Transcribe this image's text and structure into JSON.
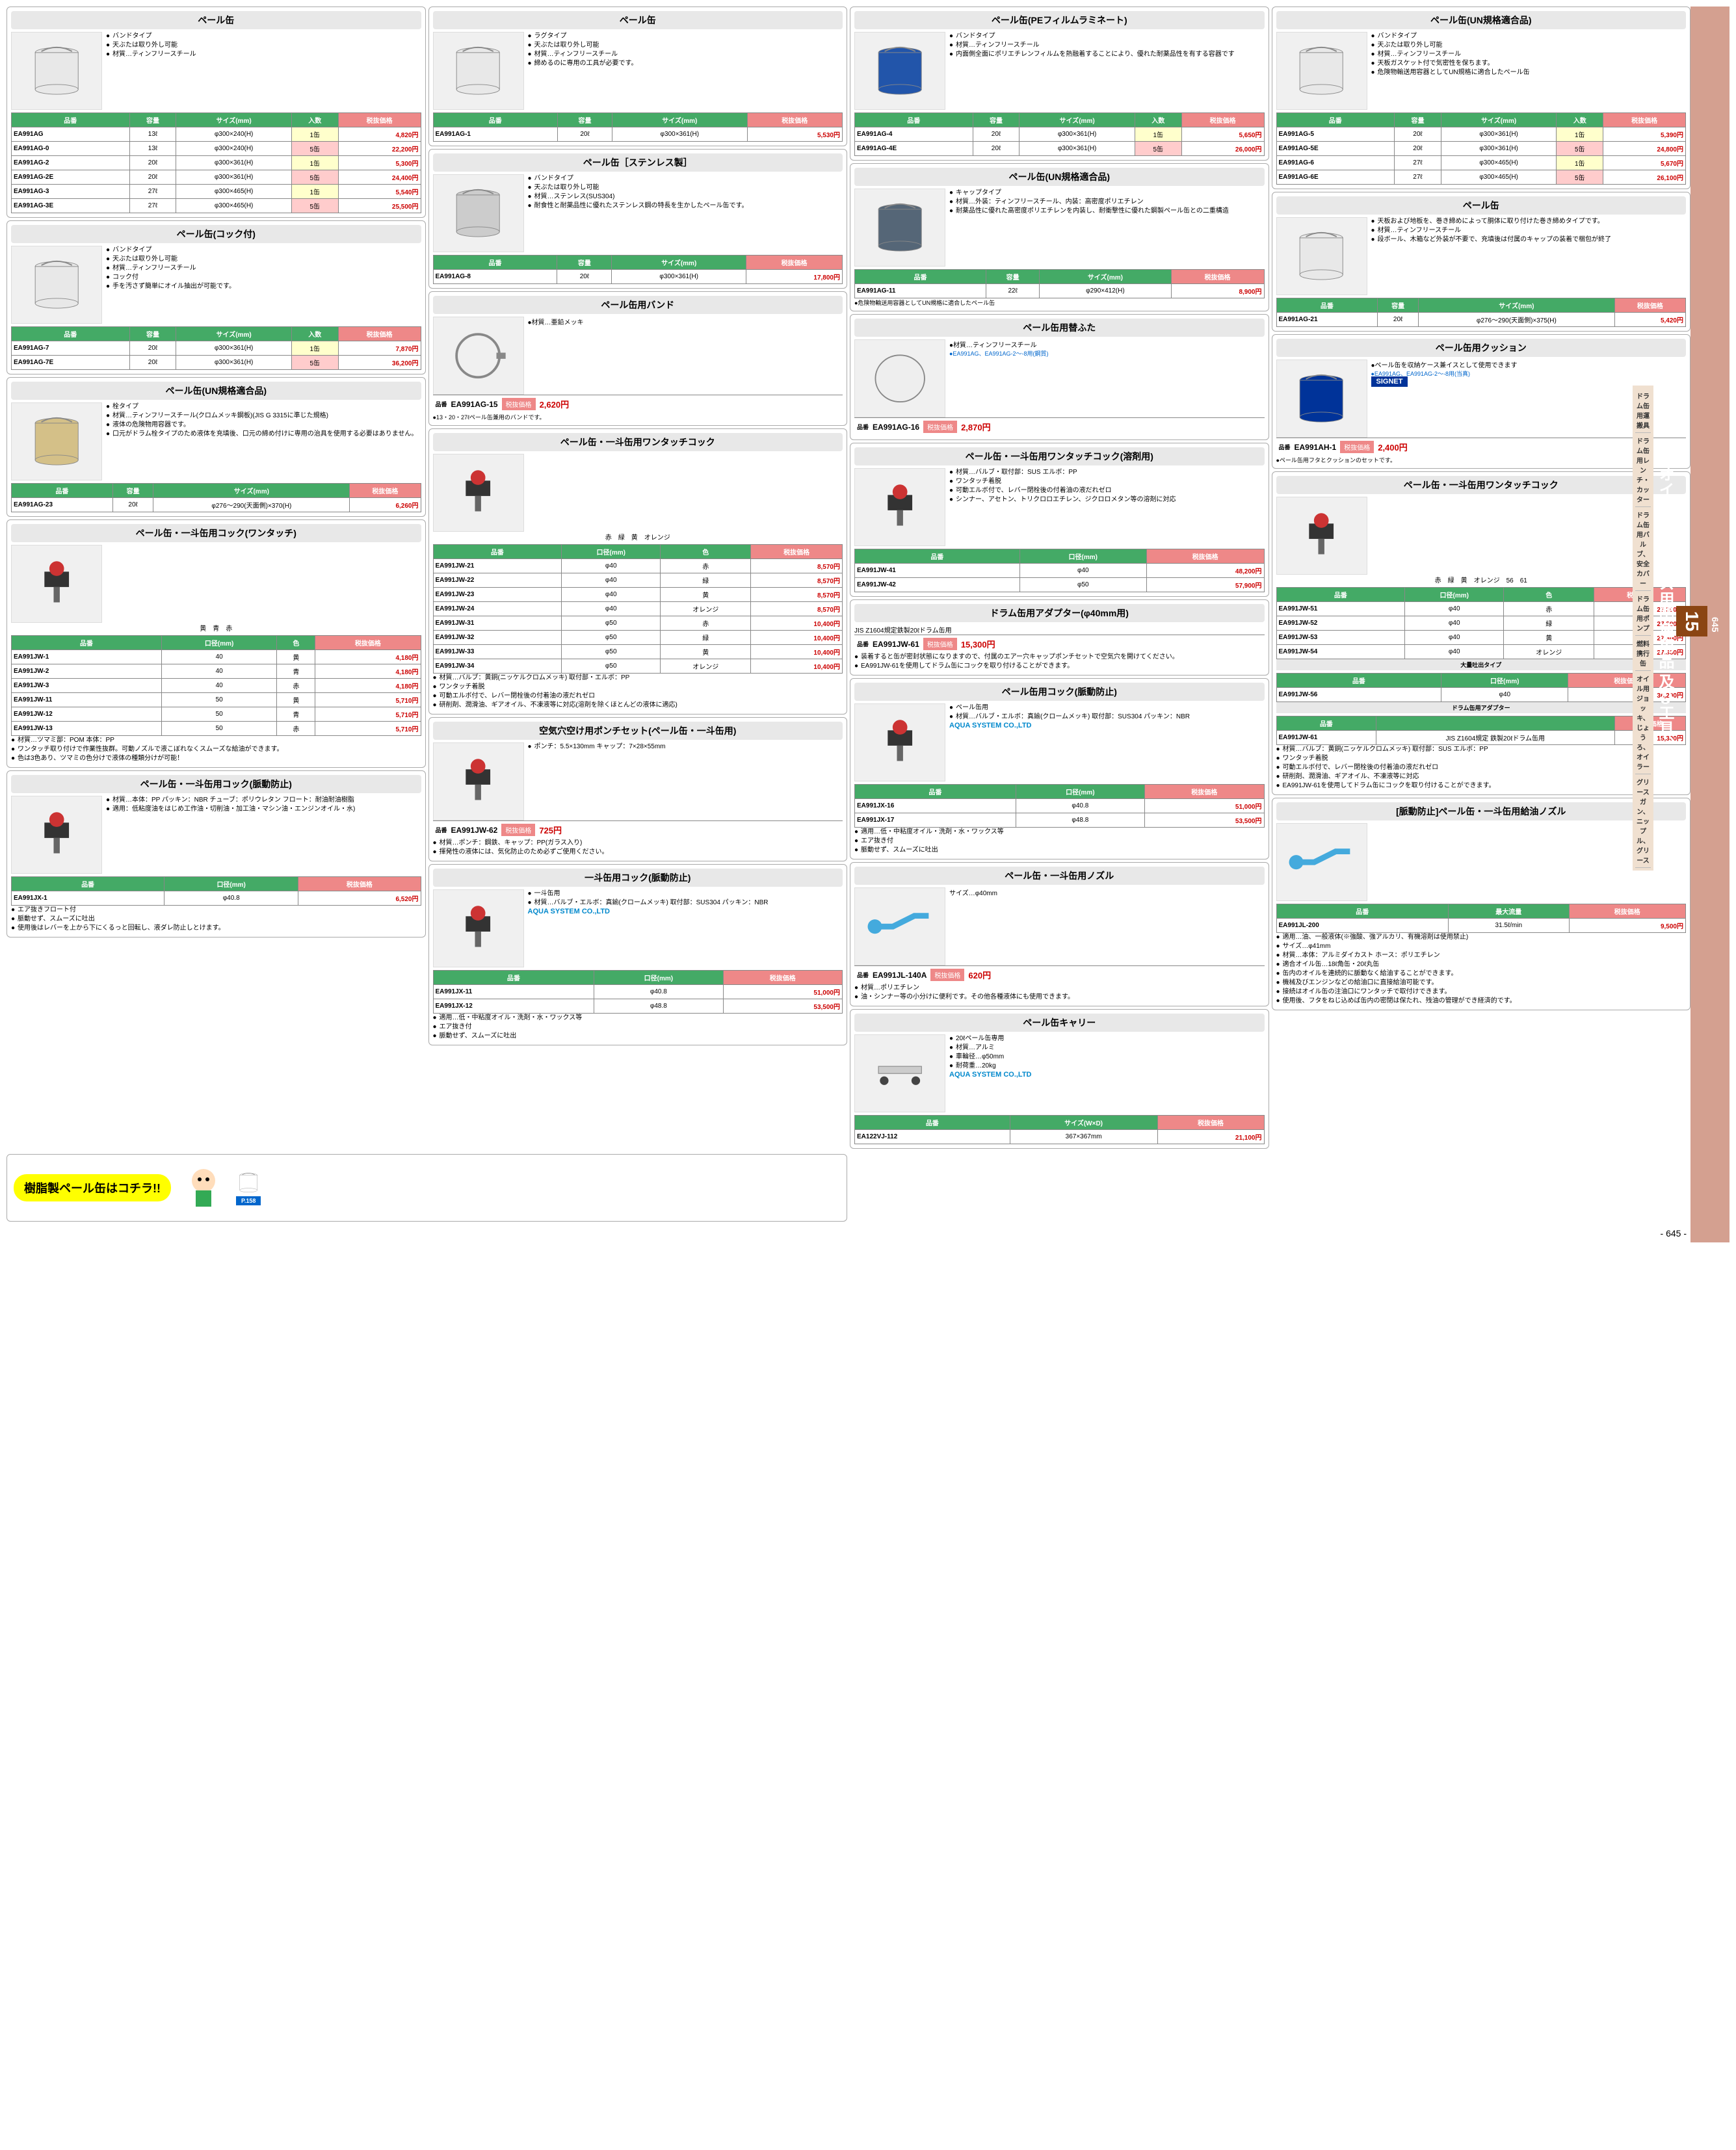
{
  "page_number": "645",
  "chapter_number": "15",
  "chapter_title": "オイル・グリース用関連用品 及び工具、部品",
  "sidebar_categories": [
    "ドラム缶用運搬具",
    "ドラム缶用レンチ・カッター",
    "ドラム缶用バルブ、安全カバー",
    "ドラム缶用ポンプ",
    "燃料携行缶",
    "オイル用ジョッキ、じょうろ、オイラー",
    "グリースガン、ニップル、グリース"
  ],
  "banner_text": "樹脂製ペール缶はコチラ!!",
  "banner_page_ref": "P.158",
  "card_pail_band": {
    "title": "ペール缶",
    "desc": [
      "バンドタイプ",
      "天ぶたは取り外し可能",
      "材質…ティンフリースチール"
    ],
    "headers": [
      "品番",
      "容量",
      "サイズ(mm)",
      "入数",
      "税抜価格"
    ],
    "rows": [
      [
        "EA991AG",
        "13ℓ",
        "φ300×240(H)",
        "1缶",
        "4,820円"
      ],
      [
        "EA991AG-0",
        "13ℓ",
        "φ300×240(H)",
        "5缶",
        "22,200円"
      ],
      [
        "EA991AG-2",
        "20ℓ",
        "φ300×361(H)",
        "1缶",
        "5,300円"
      ],
      [
        "EA991AG-2E",
        "20ℓ",
        "φ300×361(H)",
        "5缶",
        "24,400円"
      ],
      [
        "EA991AG-3",
        "27ℓ",
        "φ300×465(H)",
        "1缶",
        "5,540円"
      ],
      [
        "EA991AG-3E",
        "27ℓ",
        "φ300×465(H)",
        "5缶",
        "25,500円"
      ]
    ]
  },
  "card_pail_lug": {
    "title": "ペール缶",
    "desc": [
      "ラグタイプ",
      "天ぶたは取り外し可能",
      "材質…ティンフリースチール",
      "締めるのに専用の工具が必要です。"
    ],
    "headers": [
      "品番",
      "容量",
      "サイズ(mm)",
      "税抜価格"
    ],
    "rows": [
      [
        "EA991AG-1",
        "20ℓ",
        "φ300×361(H)",
        "5,530円"
      ]
    ]
  },
  "card_pail_pe": {
    "title": "ペール缶(PEフィルムラミネート)",
    "desc": [
      "バンドタイプ",
      "材質…ティンフリースチール",
      "内面側全面にポリエチレンフィルムを熱融着することにより、優れた耐薬品性を有する容器です"
    ],
    "headers": [
      "品番",
      "容量",
      "サイズ(mm)",
      "入数",
      "税抜価格"
    ],
    "rows": [
      [
        "EA991AG-4",
        "20ℓ",
        "φ300×361(H)",
        "1缶",
        "5,650円"
      ],
      [
        "EA991AG-4E",
        "20ℓ",
        "φ300×361(H)",
        "5缶",
        "26,000円"
      ]
    ]
  },
  "card_pail_un1": {
    "title": "ペール缶(UN規格適合品)",
    "desc": [
      "バンドタイプ",
      "天ぶたは取り外し可能",
      "材質…ティンフリースチール",
      "天板ガスケット付で気密性を保ちます。",
      "危険物輸送用容器としてUN規格に適合したペール缶"
    ],
    "headers": [
      "品番",
      "容量",
      "サイズ(mm)",
      "入数",
      "税抜価格"
    ],
    "rows": [
      [
        "EA991AG-5",
        "20ℓ",
        "φ300×361(H)",
        "1缶",
        "5,390円"
      ],
      [
        "EA991AG-5E",
        "20ℓ",
        "φ300×361(H)",
        "5缶",
        "24,800円"
      ],
      [
        "EA991AG-6",
        "27ℓ",
        "φ300×465(H)",
        "1缶",
        "5,670円"
      ],
      [
        "EA991AG-6E",
        "27ℓ",
        "φ300×465(H)",
        "5缶",
        "26,100円"
      ]
    ]
  },
  "card_pail_cock": {
    "title": "ペール缶(コック付)",
    "desc": [
      "バンドタイプ",
      "天ぶたは取り外し可能",
      "材質…ティンフリースチール",
      "コック付",
      "手を汚さず簡単にオイル抽出が可能です。"
    ],
    "headers": [
      "品番",
      "容量",
      "サイズ(mm)",
      "入数",
      "税抜価格"
    ],
    "rows": [
      [
        "EA991AG-7",
        "20ℓ",
        "φ300×361(H)",
        "1缶",
        "7,870円"
      ],
      [
        "EA991AG-7E",
        "20ℓ",
        "φ300×361(H)",
        "5缶",
        "36,200円"
      ]
    ]
  },
  "card_pail_sus": {
    "title": "ペール缶［ステンレス製］",
    "desc": [
      "バンドタイプ",
      "天ぶたは取り外し可能",
      "材質…ステンレス(SUS304)",
      "耐食性と耐薬品性に優れたステンレス鋼の特長を生かしたペール缶です。"
    ],
    "headers": [
      "品番",
      "容量",
      "サイズ(mm)",
      "税抜価格"
    ],
    "rows": [
      [
        "EA991AG-8",
        "20ℓ",
        "φ300×361(H)",
        "17,800円"
      ]
    ]
  },
  "card_pail_un2": {
    "title": "ペール缶(UN規格適合品)",
    "desc": [
      "キャップタイプ",
      "材質…外装：ティンフリースチール、内装：高密度ポリエチレン",
      "耐薬品性に優れた高密度ポリエチレンを内装し、耐衝撃性に優れた鋼製ペール缶との二重構造"
    ],
    "headers": [
      "品番",
      "容量",
      "サイズ(mm)",
      "税抜価格"
    ],
    "rows": [
      [
        "EA991AG-11",
        "22ℓ",
        "φ290×412(H)",
        "8,900円"
      ]
    ],
    "note": "●危険物輸送用容器としてUN規格に適合したペール缶"
  },
  "card_pail_wrap": {
    "title": "ペール缶",
    "desc": [
      "天板および地板を、巻き締めによって胴体に取り付けた巻き締めタイプです。",
      "材質…ティンフリースチール",
      "段ボール、木箱など外装が不要で、充填後は付属のキャップの装着で梱包が終了"
    ],
    "headers": [
      "品番",
      "容量",
      "サイズ(mm)",
      "税抜価格"
    ],
    "rows": [
      [
        "EA991AG-21",
        "20ℓ",
        "φ276～290(天面側)×375(H)",
        "5,420円"
      ]
    ]
  },
  "card_pail_un3": {
    "title": "ペール缶(UN規格適合品)",
    "desc": [
      "栓タイプ",
      "材質…ティンフリースチール(クロムメッキ鋼板)(JIS G 3315に準じた規格)",
      "液体の危険物用容器です。",
      "口元がドラム栓タイプのため液体を充填後、口元の締め付けに専用の治具を使用する必要はありません。"
    ],
    "headers": [
      "品番",
      "容量",
      "サイズ(mm)",
      "税抜価格"
    ],
    "rows": [
      [
        "EA991AG-23",
        "20ℓ",
        "φ276～290(天面側)×370(H)",
        "6,260円"
      ]
    ]
  },
  "card_pail_band_tool": {
    "title": "ペール缶用バンド",
    "desc_inline": "●材質…亜鉛メッキ",
    "code": "EA991AG-15",
    "price": "2,620円",
    "note": "●13・20・27ℓペール缶兼用のバンドです。"
  },
  "card_pail_lid": {
    "title": "ペール缶用替ふた",
    "note_blue": "●EA991AG、EA991AG-2～-8用(鋼質)",
    "desc_inline": "●材質…ティンフリースチール",
    "code": "EA991AG-16",
    "price": "2,870円"
  },
  "card_pail_cushion": {
    "title": "ペール缶用クッション",
    "desc_inline": "●ペール缶を収納ケース兼イスとして使用できます",
    "code": "EA991AH-1",
    "price": "2,400円",
    "note_blue": "●EA991AG、EA991AG-2～-8用(当真)",
    "note2": "●ペール缶用フタとクッションのセットです。",
    "brand": "SIGNET"
  },
  "card_onetouch1": {
    "title": "ペール缶・一斗缶用ワンタッチコック",
    "colors": "赤　緑　黄　オレンジ",
    "headers": [
      "品番",
      "口径(mm)",
      "色",
      "税抜価格"
    ],
    "rows": [
      [
        "EA991JW-21",
        "φ40",
        "赤",
        "8,570円"
      ],
      [
        "EA991JW-22",
        "φ40",
        "緑",
        "8,570円"
      ],
      [
        "EA991JW-23",
        "φ40",
        "黄",
        "8,570円"
      ],
      [
        "EA991JW-24",
        "φ40",
        "オレンジ",
        "8,570円"
      ],
      [
        "EA991JW-31",
        "φ50",
        "赤",
        "10,400円"
      ],
      [
        "EA991JW-32",
        "φ50",
        "緑",
        "10,400円"
      ],
      [
        "EA991JW-33",
        "φ50",
        "黄",
        "10,400円"
      ],
      [
        "EA991JW-34",
        "φ50",
        "オレンジ",
        "10,400円"
      ]
    ],
    "notes": [
      "材質…バルブ：黄銅(ニッケルクロムメッキ) 取付部・エルボ：PP",
      "ワンタッチ着脱",
      "可動エルボ付で、レバー閉栓後の付着油の液だれゼロ",
      "研削剤、潤滑油、ギアオイル、不凍液等に対応(溶剤を除くほとんどの液体に適応)"
    ]
  },
  "card_onetouch_solvent": {
    "title": "ペール缶・一斗缶用ワンタッチコック(溶剤用)",
    "desc": [
      "材質…バルブ・取付部：SUS エルボ：PP",
      "ワンタッチ着脱",
      "可動エルボ付で、レバー閉栓後の付着油の液だれゼロ",
      "シンナー、アセトン、トリクロロエチレン、ジクロロメタン等の溶剤に対応"
    ],
    "headers": [
      "品番",
      "口径(mm)",
      "税抜価格"
    ],
    "rows": [
      [
        "EA991JW-41",
        "φ40",
        "48,200円"
      ],
      [
        "EA991JW-42",
        "φ50",
        "57,900円"
      ]
    ]
  },
  "card_drum_adapter40": {
    "title": "ドラム缶用アダプター(φ40mm用)",
    "code": "EA991JW-61",
    "desc_inline": "JIS Z1604規定鉄製20ℓドラム缶用",
    "price": "15,300円",
    "notes": [
      "装着すると缶が密封状態になりますので、付属のエアー穴キャップポンチセットで空気穴を開けてください。",
      "EA991JW-61を使用してドラム缶にコックを取り付けることができます。"
    ]
  },
  "card_onetouch2": {
    "title": "ペール缶・一斗缶用ワンタッチコック",
    "img_labels": "赤　緑　黄　オレンジ　56　61",
    "headers": [
      "品番",
      "口径(mm)",
      "色",
      "税抜価格"
    ],
    "rows": [
      [
        "EA991JW-51",
        "φ40",
        "赤",
        "27,300円"
      ],
      [
        "EA991JW-52",
        "φ40",
        "緑",
        "27,300円"
      ],
      [
        "EA991JW-53",
        "φ40",
        "黄",
        "27,300円"
      ],
      [
        "EA991JW-54",
        "φ40",
        "オレンジ",
        "27,300円"
      ]
    ],
    "sub_title": "大量吐出タイプ",
    "sub_rows": [
      [
        "EA991JW-56",
        "φ40",
        "36,200円"
      ]
    ],
    "adapter_title": "ドラム缶用アダプター",
    "adapter_row": [
      "EA991JW-61",
      "JIS Z1604規定 鉄製20ℓドラム缶用",
      "15,300円"
    ],
    "notes": [
      "材質…バルブ：黄銅(ニッケルクロムメッキ) 取付部：SUS エルボ：PP",
      "ワンタッチ着脱",
      "可動エルボ付で、レバー閉栓後の付着油の液だれゼロ",
      "研削剤、潤滑油、ギアオイル、不凍液等に対応",
      "EA991JW-61を使用してドラム缶にコックを取り付けることができます。"
    ]
  },
  "card_cock_onetouch": {
    "title": "ペール缶・一斗缶用コック(ワンタッチ)",
    "colors": "黄　青　赤",
    "headers": [
      "品番",
      "口径(mm)",
      "色",
      "税抜価格"
    ],
    "rows": [
      [
        "EA991JW-1",
        "40",
        "黄",
        "4,180円"
      ],
      [
        "EA991JW-2",
        "40",
        "青",
        "4,180円"
      ],
      [
        "EA991JW-3",
        "40",
        "赤",
        "4,180円"
      ],
      [
        "EA991JW-11",
        "50",
        "黄",
        "5,710円"
      ],
      [
        "EA991JW-12",
        "50",
        "青",
        "5,710円"
      ],
      [
        "EA991JW-13",
        "50",
        "赤",
        "5,710円"
      ]
    ],
    "notes": [
      "材質…ツマミ部：POM 本体：PP",
      "ワンタッチ取り付けで作業性抜群。可動ノズルで液こぼれなくスムーズな給油ができます。",
      "色は3色あり、ツマミの色分けで液体の種類分けが可能！"
    ]
  },
  "card_punch": {
    "title": "空気穴空け用ポンチセット(ペール缶・一斗缶用)",
    "desc": [
      "ポンチ：5.5×130mm キャップ：7×28×55mm"
    ],
    "code": "EA991JW-62",
    "price": "725円",
    "notes": [
      "材質…ポンチ：鋼鉄、キャップ：PP(ガラス入り)",
      "揮発性の液体には、気化防止のため必ずご使用ください。"
    ]
  },
  "card_cock_pulse1": {
    "title": "ペール缶・一斗缶用コック(脈動防止)",
    "desc": [
      "材質…本体：PP パッキン：NBR チューブ：ポリウレタン フロート：耐油耐油樹脂",
      "適用：低粘度油をはじめ工作油・切削油・加工油・マシン油・エンジンオイル・水)"
    ],
    "headers": [
      "品番",
      "口径(mm)",
      "税抜価格"
    ],
    "rows": [
      [
        "EA991JX-1",
        "φ40.8",
        "6,520円"
      ]
    ],
    "notes": [
      "エア抜きフロート付",
      "脈動せず、スムーズに吐出",
      "使用後はレバーを上から下にくるっと回転し、液ダレ防止しとけます。"
    ]
  },
  "card_cock_pulse2": {
    "title": "ペール缶用コック(脈動防止)",
    "desc": [
      "ペール缶用",
      "材質…バルブ・エルボ：真鍮(クロームメッキ) 取付部：SUS304 パッキン：NBR"
    ],
    "headers": [
      "品番",
      "口径(mm)",
      "税抜価格"
    ],
    "rows": [
      [
        "EA991JX-16",
        "φ40.8",
        "51,000円"
      ],
      [
        "EA991JX-17",
        "φ48.8",
        "53,500円"
      ]
    ],
    "notes": [
      "適用…低・中粘度オイル・洗剤・水・ワックス等",
      "エア抜き付",
      "脈動せず、スムーズに吐出"
    ],
    "brand": "AQUA"
  },
  "card_cock_itto": {
    "title": "一斗缶用コック(脈動防止)",
    "desc": [
      "一斗缶用",
      "材質…バルブ・エルボ：真鍮(クロームメッキ) 取付部：SUS304 パッキン：NBR"
    ],
    "headers": [
      "品番",
      "口径(mm)",
      "税抜価格"
    ],
    "rows": [
      [
        "EA991JX-11",
        "φ40.8",
        "51,000円"
      ],
      [
        "EA991JX-12",
        "φ48.8",
        "53,500円"
      ]
    ],
    "notes": [
      "適用…低・中粘度オイル・洗剤・水・ワックス等",
      "エア抜き付",
      "脈動せず、スムーズに吐出"
    ],
    "brand": "AQUA"
  },
  "card_nozzle1": {
    "title": "ペール缶・一斗缶用ノズル",
    "desc_inline": "サイズ…φ40mm",
    "code": "EA991JL-140A",
    "price": "620円",
    "notes": [
      "材質…ポリエチレン",
      "油・シンナー等の小分けに便利です。その他各種液体にも使用できます。"
    ]
  },
  "card_nozzle2": {
    "title": "[脈動防止]ペール缶・一斗缶用給油ノズル",
    "headers": [
      "品番",
      "最大流量",
      "税抜価格"
    ],
    "rows": [
      [
        "EA991JL-200",
        "31.5ℓ/min",
        "9,500円"
      ]
    ],
    "notes": [
      "適用…油、一般液体(※強酸、強アルカリ、有機溶剤は使用禁止)",
      "サイズ…φ41mm",
      "材質…本体：アルミダイカスト ホース：ポリエチレン",
      "適合オイル缶…18ℓ角缶・20ℓ丸缶",
      "缶内のオイルを連続的に脈動なく給油することができます。",
      "機械及びエンジンなどの給油口に直接給油可能です。",
      "接続はオイル缶の注油口にワンタッチで取付けできます。",
      "使用後、フタをねじ込めば缶内の密閉は保たれ、残油の管理ができ経済的です。"
    ]
  },
  "card_carry": {
    "title": "ペール缶キャリー",
    "desc": [
      "20ℓペール缶専用",
      "材質…アルミ",
      "車輪径…φ50mm",
      "耐荷重…20kg"
    ],
    "headers": [
      "品番",
      "サイズ(W×D)",
      "税抜価格"
    ],
    "rows": [
      [
        "EA122VJ-112",
        "367×367mm",
        "21,100円"
      ]
    ],
    "brand": "AQUA"
  },
  "table_header_labels": {
    "code": "品番",
    "capacity": "容量",
    "size": "サイズ(mm)",
    "qty": "入数",
    "price": "税抜価格",
    "diameter": "口径(mm)",
    "color": "色",
    "flow": "最大流量",
    "wd": "サイズ(W×D)"
  }
}
